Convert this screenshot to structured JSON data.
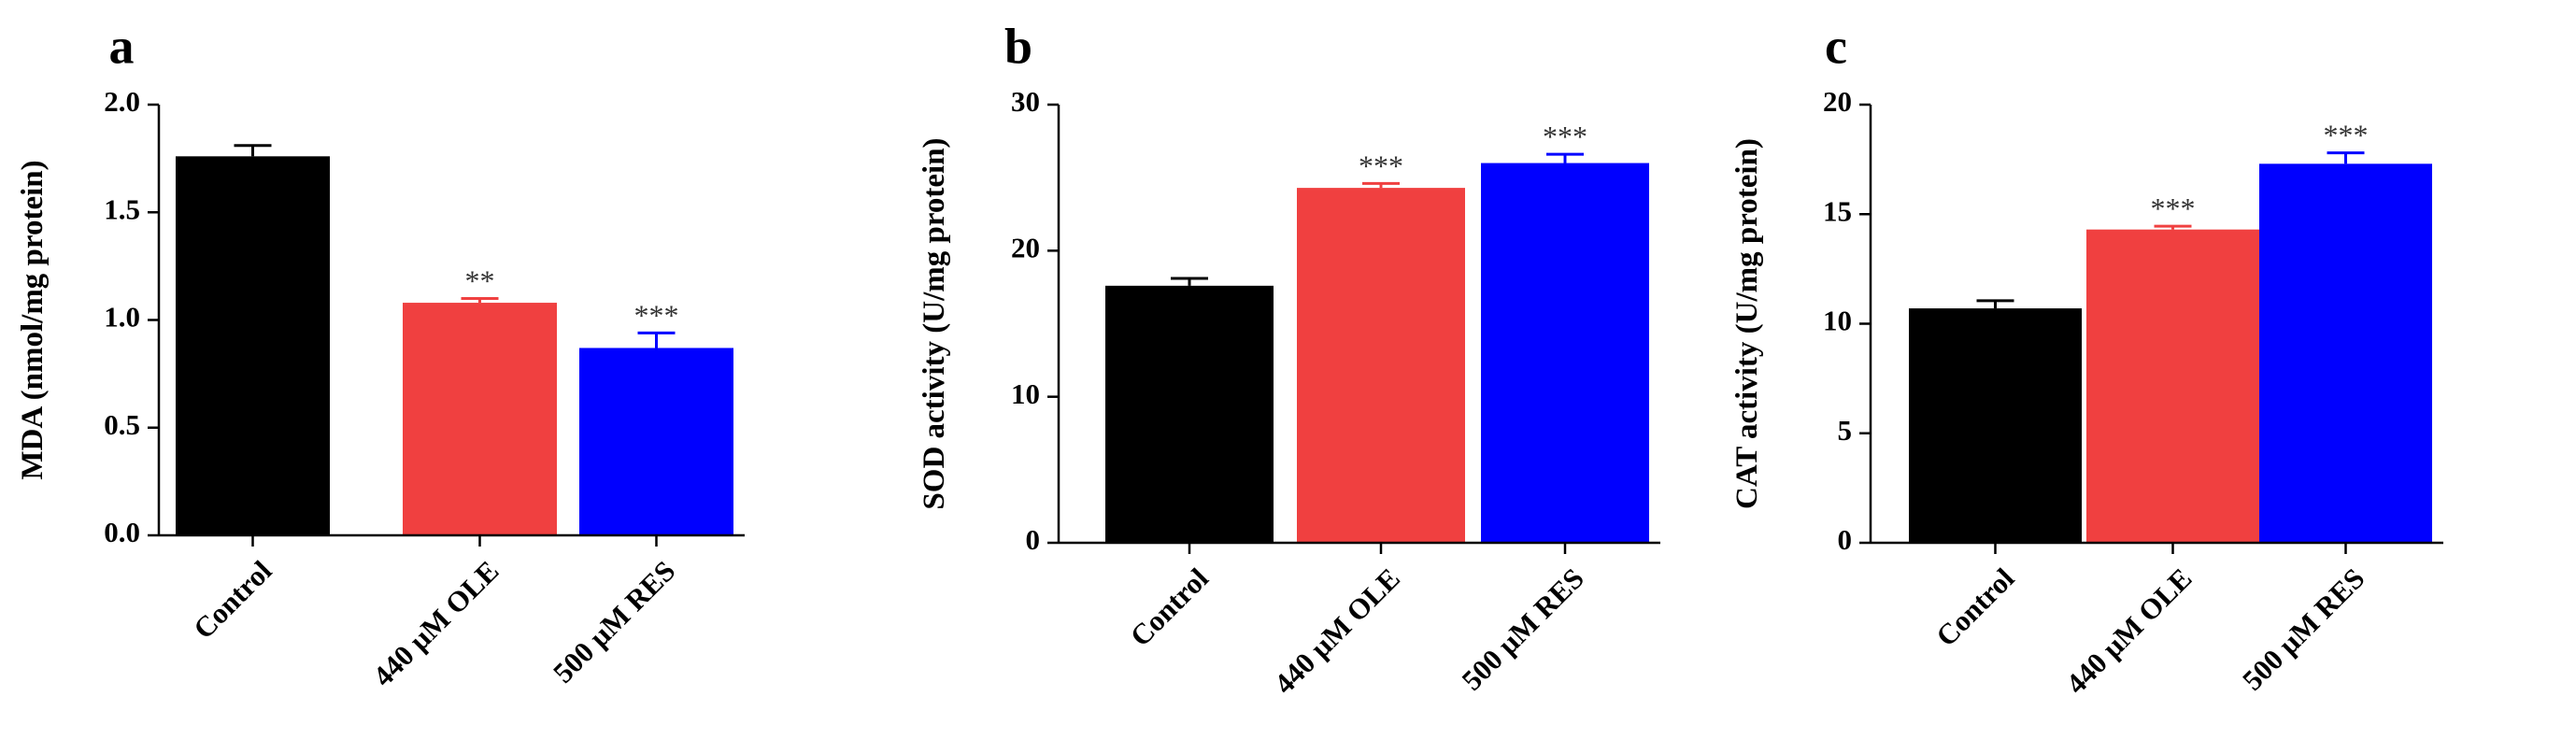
{
  "figure": {
    "colors": {
      "Control": "#000000",
      "440 µM OLE": "#f04040",
      "500 µM RES": "#0000ff",
      "axis": "#000000",
      "annotation": "#333333"
    }
  },
  "chart_data": [
    {
      "type": "bar",
      "panel": "a",
      "ylabel": "MDA (nmol/mg protein)",
      "categories": [
        "Control",
        "440 µM OLE",
        "500 µM RES"
      ],
      "values": [
        1.76,
        1.08,
        0.87
      ],
      "errors": [
        0.05,
        0.02,
        0.07
      ],
      "significance": [
        "",
        "**",
        "***"
      ],
      "ylim": [
        0,
        2.0
      ],
      "yticks": [
        0,
        0.5,
        1.0,
        1.5,
        2.0
      ],
      "ytick_labels": [
        "0.0",
        "0.5",
        "1.0",
        "1.5",
        "2.0"
      ]
    },
    {
      "type": "bar",
      "panel": "b",
      "ylabel": "SOD activity (U/mg protein)",
      "categories": [
        "Control",
        "440 µM OLE",
        "500 µM RES"
      ],
      "values": [
        17.6,
        24.3,
        26.0
      ],
      "errors": [
        0.5,
        0.3,
        0.6
      ],
      "significance": [
        "",
        "***",
        "***"
      ],
      "ylim": [
        0,
        30
      ],
      "yticks": [
        0,
        10,
        20,
        30
      ],
      "ytick_labels": [
        "0",
        "10",
        "20",
        "30"
      ]
    },
    {
      "type": "bar",
      "panel": "c",
      "ylabel": "CAT activity (U/mg protein)",
      "categories": [
        "Control",
        "440 µM OLE",
        "500 µM RES"
      ],
      "values": [
        10.7,
        14.3,
        17.3
      ],
      "errors": [
        0.35,
        0.15,
        0.5
      ],
      "significance": [
        "",
        "***",
        "***"
      ],
      "ylim": [
        0,
        20
      ],
      "yticks": [
        0,
        5,
        10,
        15,
        20
      ],
      "ytick_labels": [
        "0",
        "5",
        "10",
        "15",
        "20"
      ]
    }
  ]
}
